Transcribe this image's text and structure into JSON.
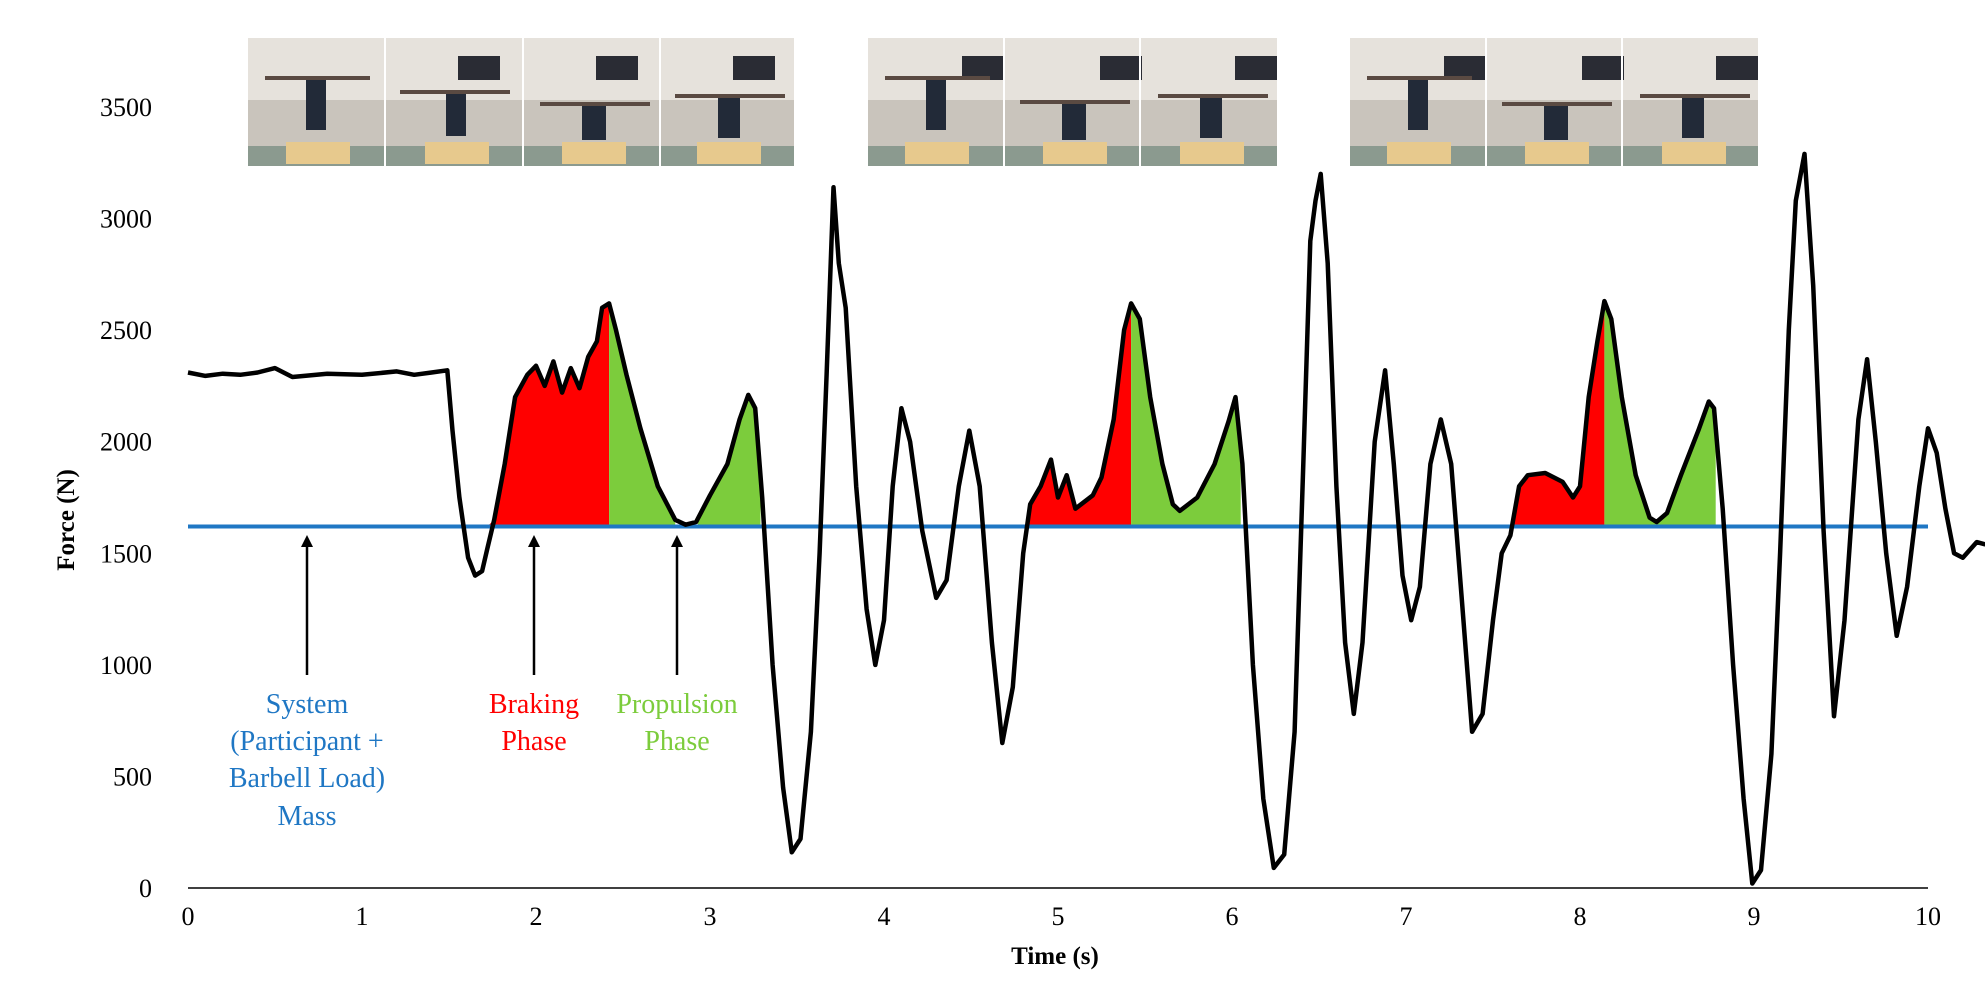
{
  "chart_data": {
    "type": "line",
    "xlabel": "Time (s)",
    "ylabel": "Force (N)",
    "xlim": [
      0,
      10
    ],
    "ylim": [
      0,
      3500
    ],
    "x_ticks": [
      "0",
      "1",
      "2",
      "3",
      "4",
      "5",
      "6",
      "7",
      "8",
      "9",
      "10"
    ],
    "y_ticks": [
      "0",
      "500",
      "1000",
      "1500",
      "2000",
      "2500",
      "3000",
      "3500"
    ],
    "grid": false,
    "system_mass_force": 1620,
    "colors": {
      "force_line": "#000000",
      "system_line": "#1f77c4",
      "braking": "#ff0000",
      "propulsion": "#7ccc3c"
    },
    "force_series": [
      [
        0,
        2310
      ],
      [
        0.1,
        2295
      ],
      [
        0.2,
        2305
      ],
      [
        0.3,
        2300
      ],
      [
        0.4,
        2310
      ],
      [
        0.5,
        2330
      ],
      [
        0.6,
        2290
      ],
      [
        0.8,
        2305
      ],
      [
        1.0,
        2300
      ],
      [
        1.2,
        2315
      ],
      [
        1.3,
        2300
      ],
      [
        1.4,
        2310
      ],
      [
        1.49,
        2320
      ],
      [
        1.52,
        2050
      ],
      [
        1.56,
        1750
      ],
      [
        1.61,
        1480
      ],
      [
        1.65,
        1400
      ],
      [
        1.69,
        1420
      ],
      [
        1.72,
        1520
      ],
      [
        1.76,
        1650
      ],
      [
        1.82,
        1900
      ],
      [
        1.88,
        2200
      ],
      [
        1.95,
        2300
      ],
      [
        2.0,
        2340
      ],
      [
        2.05,
        2250
      ],
      [
        2.1,
        2360
      ],
      [
        2.15,
        2220
      ],
      [
        2.2,
        2330
      ],
      [
        2.25,
        2240
      ],
      [
        2.3,
        2380
      ],
      [
        2.35,
        2450
      ],
      [
        2.38,
        2600
      ],
      [
        2.42,
        2620
      ],
      [
        2.46,
        2500
      ],
      [
        2.52,
        2300
      ],
      [
        2.6,
        2060
      ],
      [
        2.7,
        1800
      ],
      [
        2.8,
        1650
      ],
      [
        2.86,
        1628
      ],
      [
        2.92,
        1640
      ],
      [
        3.0,
        1760
      ],
      [
        3.1,
        1900
      ],
      [
        3.17,
        2100
      ],
      [
        3.22,
        2210
      ],
      [
        3.26,
        2150
      ],
      [
        3.3,
        1750
      ],
      [
        3.36,
        1000
      ],
      [
        3.42,
        450
      ],
      [
        3.47,
        160
      ],
      [
        3.52,
        220
      ],
      [
        3.58,
        700
      ],
      [
        3.63,
        1500
      ],
      [
        3.67,
        2300
      ],
      [
        3.71,
        3140
      ],
      [
        3.74,
        2800
      ],
      [
        3.78,
        2600
      ],
      [
        3.84,
        1800
      ],
      [
        3.9,
        1250
      ],
      [
        3.95,
        1000
      ],
      [
        4.0,
        1200
      ],
      [
        4.05,
        1800
      ],
      [
        4.1,
        2150
      ],
      [
        4.15,
        2000
      ],
      [
        4.22,
        1600
      ],
      [
        4.3,
        1300
      ],
      [
        4.36,
        1380
      ],
      [
        4.43,
        1800
      ],
      [
        4.49,
        2050
      ],
      [
        4.55,
        1800
      ],
      [
        4.62,
        1100
      ],
      [
        4.68,
        650
      ],
      [
        4.74,
        900
      ],
      [
        4.8,
        1500
      ],
      [
        4.84,
        1720
      ],
      [
        4.9,
        1800
      ],
      [
        4.96,
        1920
      ],
      [
        5.0,
        1750
      ],
      [
        5.05,
        1850
      ],
      [
        5.1,
        1700
      ],
      [
        5.2,
        1760
      ],
      [
        5.25,
        1840
      ],
      [
        5.32,
        2100
      ],
      [
        5.38,
        2500
      ],
      [
        5.42,
        2620
      ],
      [
        5.47,
        2550
      ],
      [
        5.53,
        2200
      ],
      [
        5.6,
        1900
      ],
      [
        5.66,
        1720
      ],
      [
        5.7,
        1690
      ],
      [
        5.8,
        1750
      ],
      [
        5.9,
        1900
      ],
      [
        5.98,
        2090
      ],
      [
        6.02,
        2200
      ],
      [
        6.06,
        1900
      ],
      [
        6.12,
        1000
      ],
      [
        6.18,
        400
      ],
      [
        6.24,
        90
      ],
      [
        6.3,
        150
      ],
      [
        6.36,
        700
      ],
      [
        6.41,
        1900
      ],
      [
        6.45,
        2900
      ],
      [
        6.48,
        3080
      ],
      [
        6.51,
        3200
      ],
      [
        6.55,
        2800
      ],
      [
        6.6,
        1800
      ],
      [
        6.65,
        1100
      ],
      [
        6.7,
        780
      ],
      [
        6.75,
        1100
      ],
      [
        6.82,
        2000
      ],
      [
        6.88,
        2320
      ],
      [
        6.93,
        1900
      ],
      [
        6.98,
        1400
      ],
      [
        7.03,
        1200
      ],
      [
        7.08,
        1350
      ],
      [
        7.14,
        1900
      ],
      [
        7.2,
        2100
      ],
      [
        7.26,
        1900
      ],
      [
        7.32,
        1300
      ],
      [
        7.38,
        700
      ],
      [
        7.44,
        780
      ],
      [
        7.5,
        1200
      ],
      [
        7.55,
        1500
      ],
      [
        7.6,
        1580
      ],
      [
        7.65,
        1800
      ],
      [
        7.7,
        1850
      ],
      [
        7.8,
        1860
      ],
      [
        7.9,
        1820
      ],
      [
        7.96,
        1750
      ],
      [
        8.0,
        1800
      ],
      [
        8.05,
        2200
      ],
      [
        8.1,
        2450
      ],
      [
        8.14,
        2630
      ],
      [
        8.18,
        2550
      ],
      [
        8.24,
        2200
      ],
      [
        8.32,
        1850
      ],
      [
        8.4,
        1660
      ],
      [
        8.44,
        1640
      ],
      [
        8.5,
        1680
      ],
      [
        8.58,
        1850
      ],
      [
        8.68,
        2050
      ],
      [
        8.74,
        2180
      ],
      [
        8.77,
        2150
      ],
      [
        8.82,
        1700
      ],
      [
        8.88,
        1000
      ],
      [
        8.94,
        400
      ],
      [
        8.99,
        20
      ],
      [
        9.04,
        80
      ],
      [
        9.1,
        600
      ],
      [
        9.15,
        1500
      ],
      [
        9.2,
        2500
      ],
      [
        9.24,
        3080
      ],
      [
        9.29,
        3290
      ],
      [
        9.34,
        2700
      ],
      [
        9.4,
        1600
      ],
      [
        9.46,
        770
      ],
      [
        9.52,
        1200
      ],
      [
        9.6,
        2100
      ],
      [
        9.65,
        2370
      ],
      [
        9.7,
        2000
      ],
      [
        9.76,
        1500
      ],
      [
        9.82,
        1130
      ],
      [
        9.88,
        1350
      ],
      [
        9.95,
        1800
      ],
      [
        10.0,
        2060
      ],
      [
        10.05,
        1950
      ],
      [
        10.1,
        1700
      ],
      [
        10.15,
        1500
      ],
      [
        10.2,
        1480
      ],
      [
        10.28,
        1550
      ],
      [
        10.33,
        1540
      ]
    ],
    "braking_phases": [
      [
        1.72,
        2.42
      ],
      [
        4.83,
        5.42
      ],
      [
        7.55,
        8.14
      ]
    ],
    "propulsion_phases": [
      [
        2.42,
        2.8
      ],
      [
        2.93,
        3.29
      ],
      [
        5.42,
        6.05
      ],
      [
        8.14,
        8.78
      ]
    ],
    "annotations": {
      "system_lines": [
        "System",
        "(Participant +",
        "Barbell Load)",
        "Mass"
      ],
      "braking_lines": [
        "Braking",
        "Phase"
      ],
      "propulsion_lines": [
        "Propulsion",
        "Phase"
      ]
    }
  }
}
